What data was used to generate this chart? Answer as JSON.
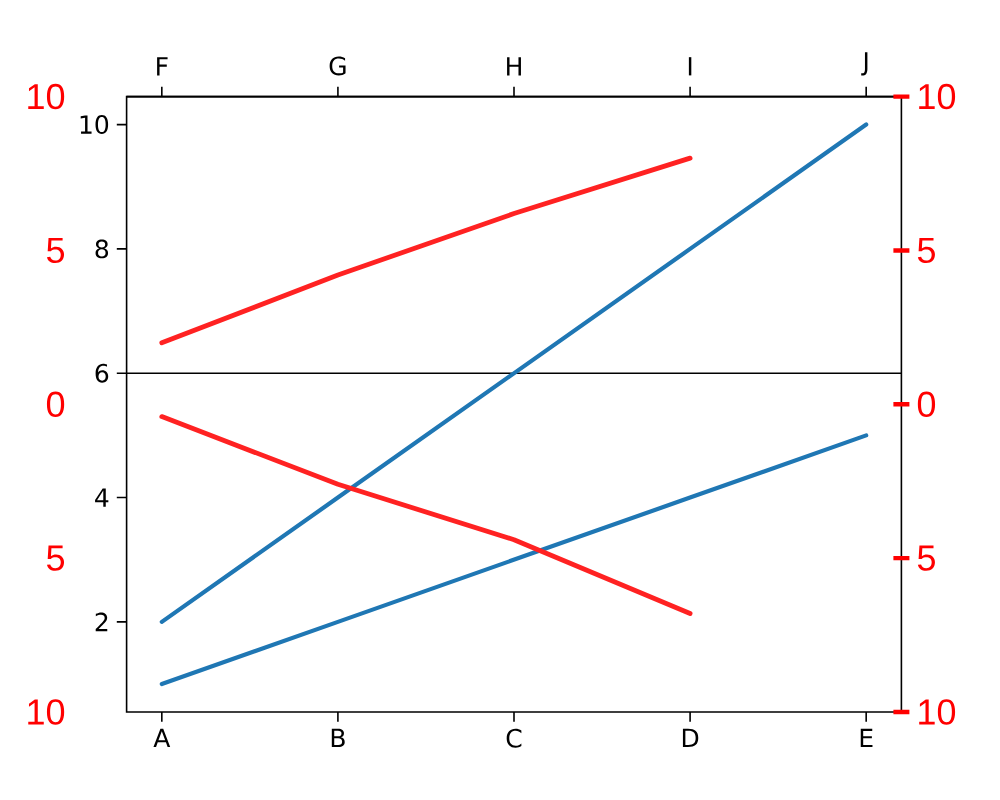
{
  "chart_data": {
    "type": "line",
    "categories": [
      "A",
      "B",
      "C",
      "D",
      "E"
    ],
    "ylim": [
      0.55,
      10.45
    ],
    "yticks": [
      2,
      4,
      6,
      8,
      10
    ],
    "y2lim": [
      10,
      -10
    ],
    "y2ticks": [
      {
        "value": -10,
        "label": "10"
      },
      {
        "value": -5,
        "label": "5"
      },
      0,
      5,
      10
    ],
    "y3lim": [
      10,
      -10
    ],
    "y3ticks": [
      {
        "value": -10,
        "label": "10"
      },
      {
        "value": -5,
        "label": "5"
      },
      0,
      5,
      10
    ],
    "series": [
      {
        "color": "#1f77b4",
        "values": [
          2,
          4,
          6,
          8,
          10
        ]
      },
      {
        "color": "#1f77b4",
        "values": [
          1,
          2,
          3,
          4,
          5
        ]
      },
      {
        "color": "#ff2222",
        "axis": "y2",
        "values": [
          -2.0,
          -4.2,
          -6.2,
          -8.0,
          null
        ]
      },
      {
        "color": "#ff2222",
        "axis": "y2",
        "values": [
          0.4,
          2.6,
          4.4,
          6.8,
          null
        ]
      }
    ],
    "ref_lines": [
      {
        "axis": "y",
        "value": 6,
        "color": "#000000"
      }
    ],
    "annotations": [
      {
        "text": "F",
        "x": "A"
      },
      {
        "text": "G",
        "x": "B"
      },
      {
        "text": "H",
        "x": "C"
      },
      {
        "text": "I",
        "x": "D"
      },
      {
        "text": "J",
        "x": "E"
      }
    ]
  }
}
